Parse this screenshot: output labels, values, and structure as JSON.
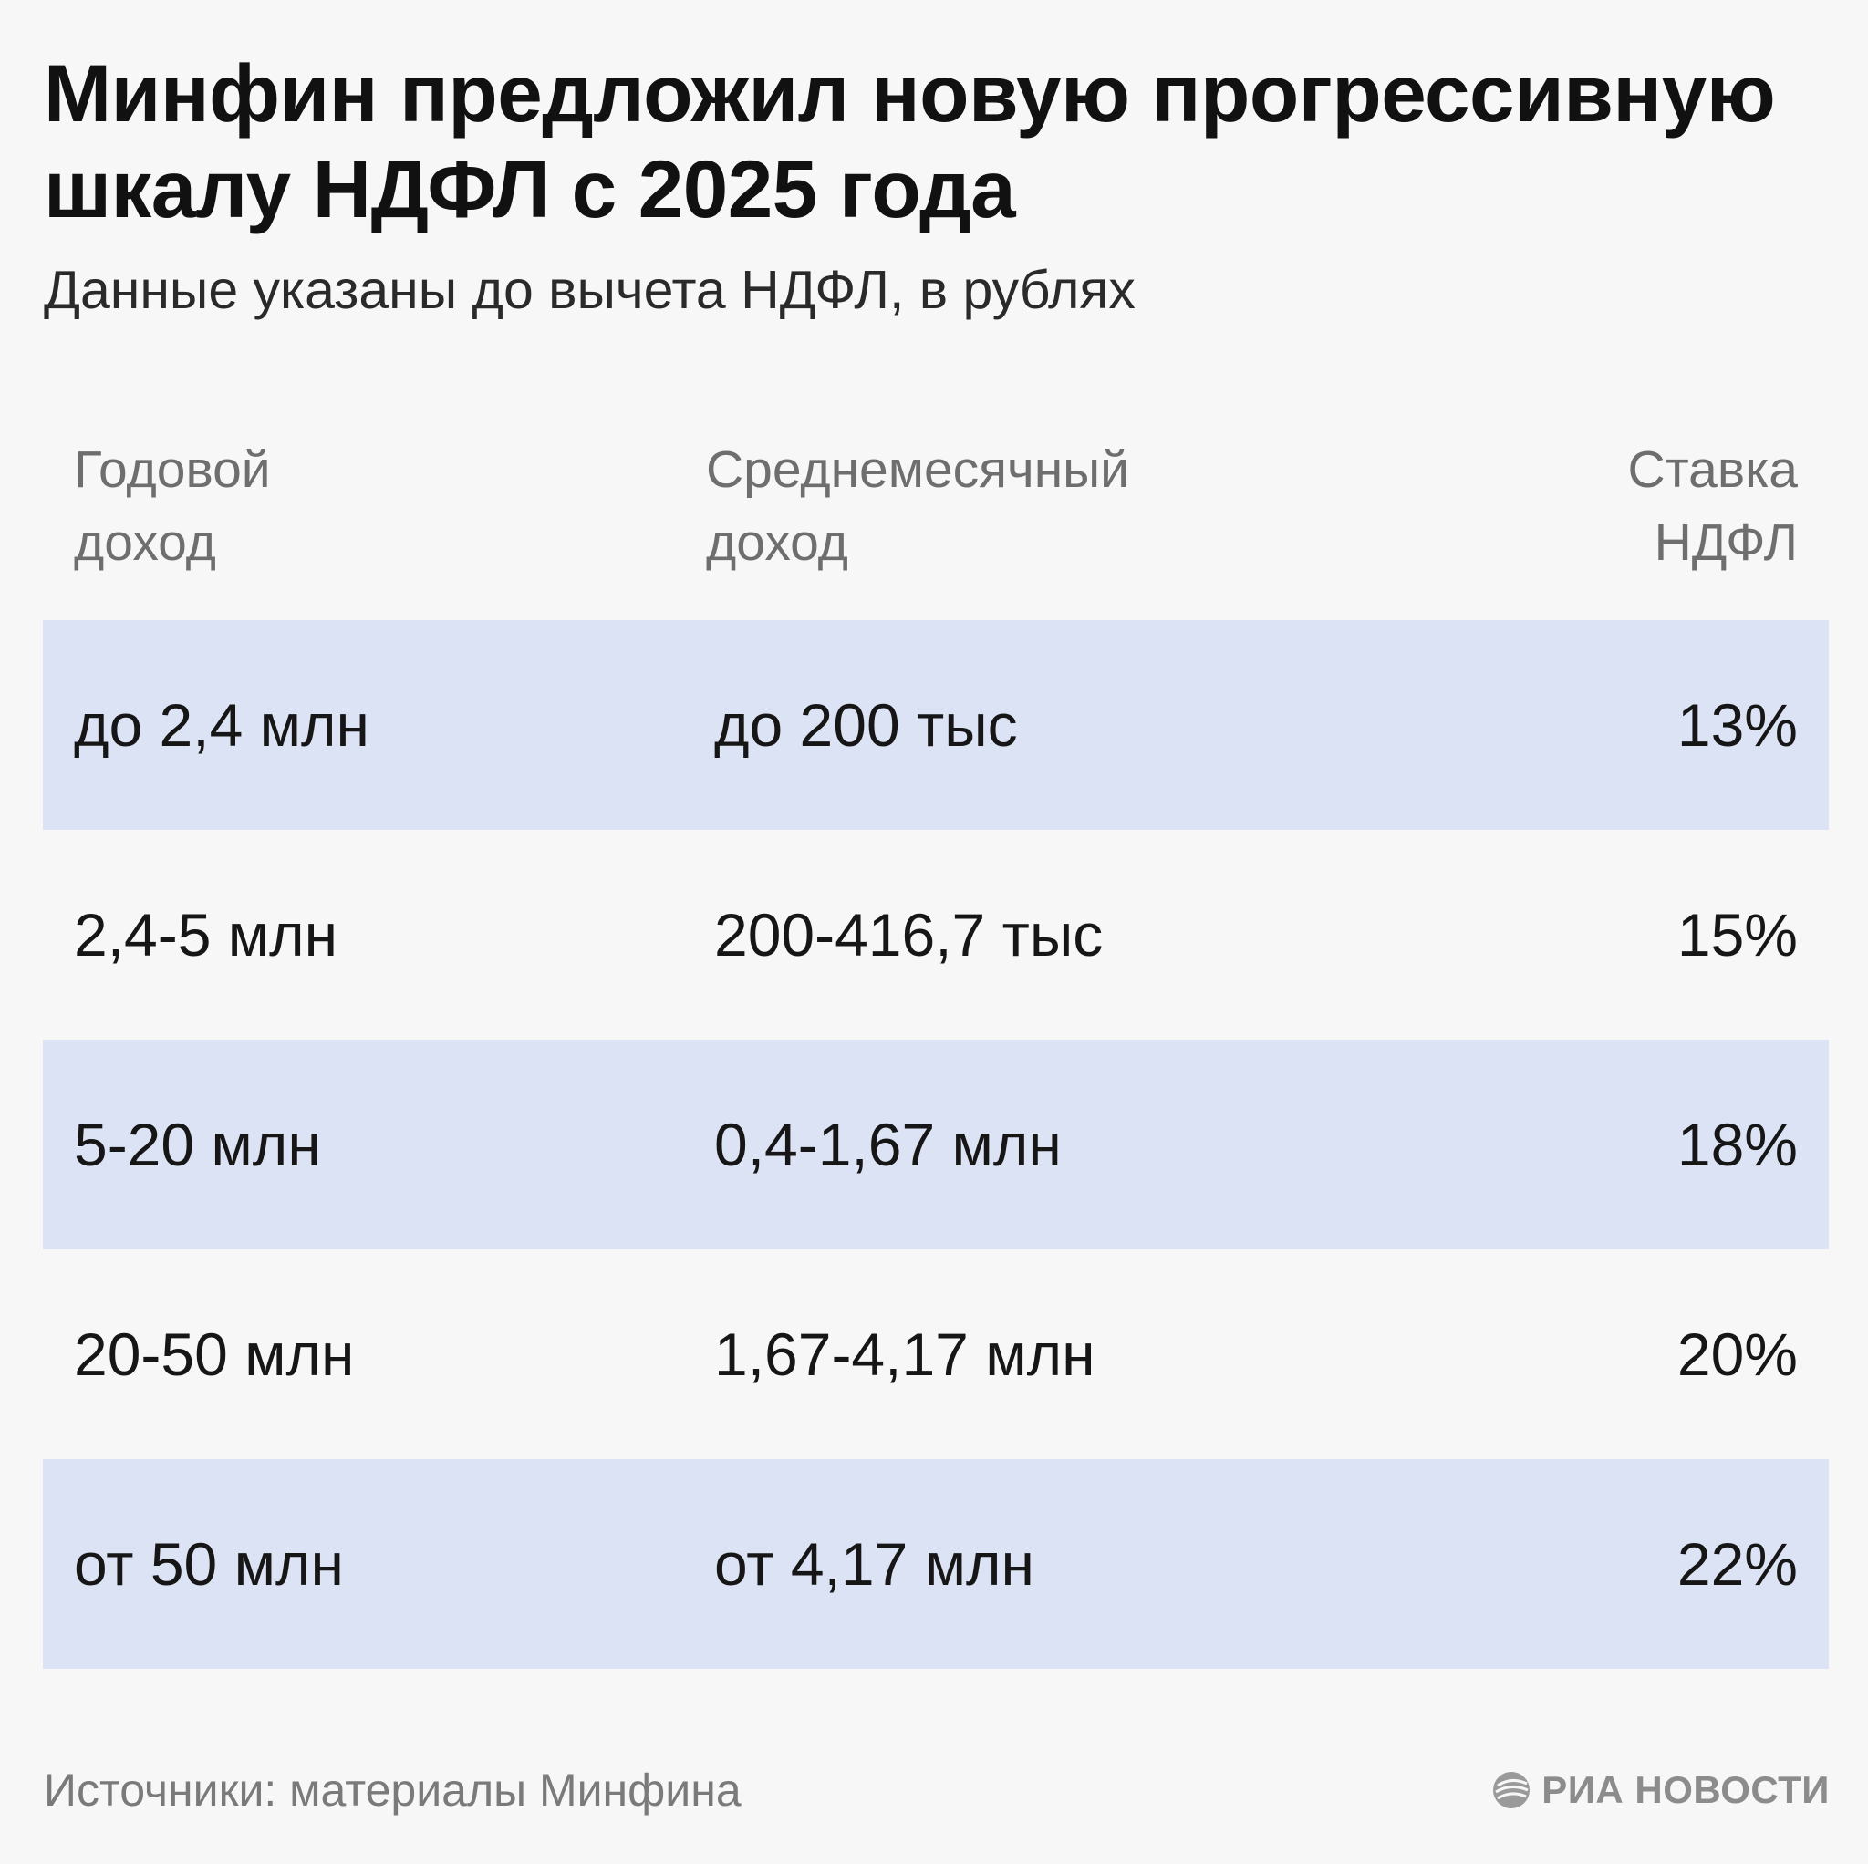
{
  "title": "Минфин предложил новую прогрессивную шкалу НДФЛ с 2025 года",
  "subtitle": "Данные указаны до вычета НДФЛ, в рублях",
  "source": "Источники: материалы Минфина",
  "logo_text": "РИА НОВОСТИ",
  "colors": {
    "row_shade": "#dce3f4",
    "background": "#f7f7f7",
    "header_text": "#6e6e6e"
  },
  "chart_data": {
    "type": "table",
    "title": "Минфин предложил новую прогрессивную шкалу НДФЛ с 2025 года",
    "subtitle": "Данные указаны до вычета НДФЛ, в рублях",
    "columns": [
      "Годовой\nдоход",
      "Среднемесячный\nдоход",
      "Ставка\nНДФЛ"
    ],
    "rows": [
      [
        "до 2,4 млн",
        "до 200 тыс",
        "13%"
      ],
      [
        "2,4-5 млн",
        "200-416,7 тыс",
        "15%"
      ],
      [
        "5-20 млн",
        "0,4-1,67 млн",
        "18%"
      ],
      [
        "20-50 млн",
        "1,67-4,17 млн",
        "20%"
      ],
      [
        "от 50 млн",
        "от 4,17 млн",
        "22%"
      ]
    ]
  }
}
